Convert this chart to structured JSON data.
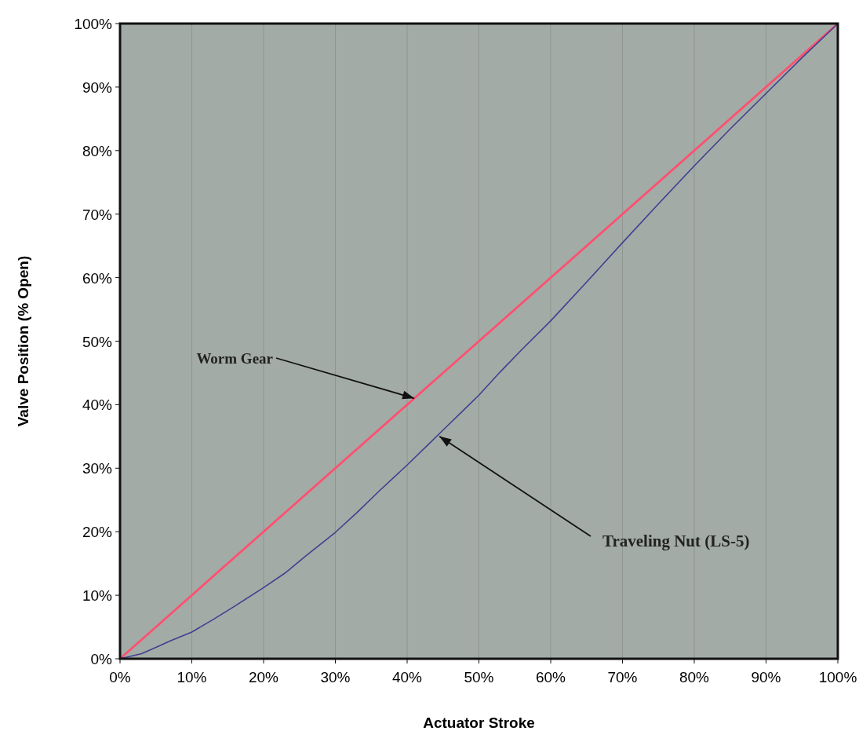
{
  "chart_data": {
    "type": "line",
    "xlabel": "Actuator Stroke",
    "ylabel": "Valve Position (% Open)",
    "xlim": [
      0,
      100
    ],
    "ylim": [
      0,
      100
    ],
    "xticks": [
      {
        "value": 0,
        "label": "0%"
      },
      {
        "value": 10,
        "label": "10%"
      },
      {
        "value": 20,
        "label": "20%"
      },
      {
        "value": 30,
        "label": "30%"
      },
      {
        "value": 40,
        "label": "40%"
      },
      {
        "value": 50,
        "label": "50%"
      },
      {
        "value": 60,
        "label": "60%"
      },
      {
        "value": 70,
        "label": "70%"
      },
      {
        "value": 80,
        "label": "80%"
      },
      {
        "value": 90,
        "label": "90%"
      },
      {
        "value": 100,
        "label": "100%"
      }
    ],
    "yticks": [
      {
        "value": 0,
        "label": "0%"
      },
      {
        "value": 10,
        "label": "10%"
      },
      {
        "value": 20,
        "label": "20%"
      },
      {
        "value": 30,
        "label": "30%"
      },
      {
        "value": 40,
        "label": "40%"
      },
      {
        "value": 50,
        "label": "50%"
      },
      {
        "value": 60,
        "label": "60%"
      },
      {
        "value": 70,
        "label": "70%"
      },
      {
        "value": 80,
        "label": "80%"
      },
      {
        "value": 90,
        "label": "90%"
      },
      {
        "value": 100,
        "label": "100%"
      }
    ],
    "grid": "x",
    "line_style": "solid",
    "series": [
      {
        "color": "#ff5070",
        "x": [
          0,
          100
        ],
        "values": [
          0,
          100
        ]
      },
      {
        "color": "#404090",
        "x": [
          0,
          3,
          5,
          7,
          10,
          13,
          16,
          20,
          23,
          26,
          30,
          33,
          36,
          40,
          43,
          45,
          48,
          50,
          53,
          56,
          60,
          65,
          70,
          75,
          80,
          85,
          90,
          95,
          100
        ],
        "values": [
          0,
          0.8,
          1.8,
          2.8,
          4.2,
          6.2,
          8.3,
          11.2,
          13.5,
          16.3,
          19.9,
          23,
          26.3,
          30.5,
          33.8,
          36,
          39.3,
          41.5,
          45.2,
          48.7,
          53.2,
          59.3,
          65.5,
          71.6,
          77.6,
          83.4,
          89,
          94.6,
          100
        ]
      }
    ],
    "annotations": [
      {
        "text": "Worm Gear",
        "x": 41,
        "y": 41
      },
      {
        "text": "Traveling Nut (LS-5)",
        "x": 44.5,
        "y": 35
      }
    ]
  }
}
